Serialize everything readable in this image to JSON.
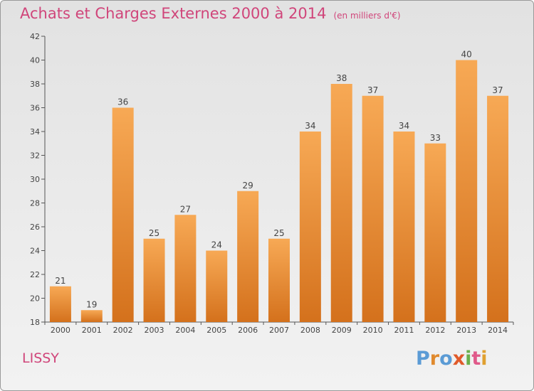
{
  "title": "Achats et Charges Externes 2000 à 2014",
  "unit": "(en milliers d'€)",
  "city": "LISSY",
  "brand": "Proxiti",
  "colors": {
    "title": "#d0457a",
    "bar_top": "#f7a955",
    "bar_bottom": "#d4711c",
    "axis": "#555555",
    "logo": [
      "#5b9bd5",
      "#e08a2e",
      "#5b9bd5",
      "#e05a2a",
      "#6ab04c",
      "#e05a8a",
      "#e0a030"
    ]
  },
  "chart_data": {
    "type": "bar",
    "title": "Achats et Charges Externes 2000 à 2014",
    "subtitle": "(en milliers d'€)",
    "categories": [
      "2000",
      "2001",
      "2002",
      "2003",
      "2004",
      "2005",
      "2006",
      "2007",
      "2008",
      "2009",
      "2010",
      "2011",
      "2012",
      "2013",
      "2014"
    ],
    "values": [
      21,
      19,
      36,
      25,
      27,
      24,
      29,
      25,
      34,
      38,
      37,
      34,
      33,
      40,
      37
    ],
    "ylim": [
      18,
      42
    ],
    "yticks": [
      18,
      20,
      22,
      24,
      26,
      28,
      30,
      32,
      34,
      36,
      38,
      40,
      42
    ],
    "grid": false,
    "legend": "none"
  }
}
